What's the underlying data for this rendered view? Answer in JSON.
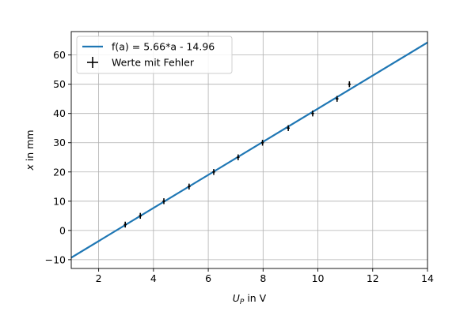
{
  "chart_data": {
    "type": "line",
    "xlabel": {
      "symbol": "U",
      "subscript": "P",
      "suffix": " in V"
    },
    "ylabel": {
      "symbol": "x",
      "suffix": " in mm"
    },
    "xlim": [
      1,
      14
    ],
    "ylim": [
      -13,
      68
    ],
    "xticks": [
      2,
      4,
      6,
      8,
      10,
      12,
      14
    ],
    "yticks": [
      -10,
      0,
      10,
      20,
      30,
      40,
      50,
      60
    ],
    "grid": true,
    "legend_position": "top-left",
    "fit_line": {
      "name": "f(a) = 5.66*a - 14.96",
      "slope": 5.66,
      "intercept": -14.96,
      "color": "#1f77b4"
    },
    "points": {
      "name": "Werte mit Fehler",
      "color": "#000000",
      "x": [
        2.97,
        3.52,
        4.38,
        5.3,
        6.2,
        7.09,
        7.98,
        8.92,
        9.81,
        10.7,
        11.15
      ],
      "y": [
        2,
        5,
        10,
        15,
        20,
        25,
        30,
        35,
        40,
        45,
        50
      ],
      "xerr": 0.05,
      "yerr": 1
    }
  }
}
